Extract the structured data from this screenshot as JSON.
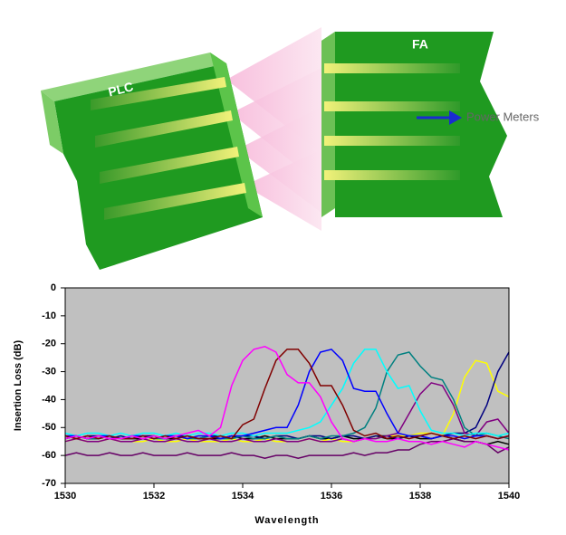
{
  "diagram": {
    "labels": {
      "left_block": "PLC",
      "right_block": "FA",
      "output": "Power Meters"
    }
  },
  "chart_data": {
    "type": "line",
    "x_label": "Wavelength",
    "y_label": "Insertion Loss (dB)",
    "xlim": [
      1530,
      1540
    ],
    "xticks": [
      1530,
      1532,
      1534,
      1536,
      1538,
      1540
    ],
    "ylim": [
      -70,
      0
    ],
    "yticks": [
      0,
      -10,
      -20,
      -30,
      -40,
      -50,
      -60,
      -70
    ],
    "grid": false,
    "background": "#c0c0c0",
    "x": [
      1530,
      1530.25,
      1530.5,
      1530.75,
      1531,
      1531.25,
      1531.5,
      1531.75,
      1532,
      1532.25,
      1532.5,
      1532.75,
      1533,
      1533.25,
      1533.5,
      1533.75,
      1534,
      1534.25,
      1534.5,
      1534.75,
      1535,
      1535.25,
      1535.5,
      1535.75,
      1536,
      1536.25,
      1536.5,
      1536.75,
      1537,
      1537.25,
      1537.5,
      1537.75,
      1538,
      1538.25,
      1538.5,
      1538.75,
      1539,
      1539.25,
      1539.5,
      1539.75,
      1540
    ],
    "series": [
      {
        "color": "#000000",
        "values": [
          -54,
          -53,
          -54,
          -54,
          -53,
          -54,
          -54,
          -54,
          -53,
          -54,
          -54,
          -53,
          -54,
          -54,
          -54,
          -53,
          -54,
          -54,
          -53,
          -54,
          -54,
          -54,
          -53,
          -54,
          -54,
          -53,
          -54,
          -54,
          -53,
          -54,
          -54,
          -53,
          -54,
          -54,
          -53,
          -54,
          -55,
          -55,
          -56,
          -55,
          -56
        ]
      },
      {
        "color": "#660066",
        "values": [
          -60,
          -59,
          -60,
          -60,
          -59,
          -60,
          -60,
          -59,
          -60,
          -60,
          -60,
          -59,
          -60,
          -60,
          -60,
          -59,
          -60,
          -60,
          -61,
          -60,
          -60,
          -61,
          -60,
          -60,
          -60,
          -60,
          -59,
          -60,
          -59,
          -59,
          -58,
          -58,
          -56,
          -55,
          -55,
          -54,
          -55,
          -55,
          -56,
          -59,
          -57
        ]
      },
      {
        "color": "#ffff00",
        "values": [
          -55,
          -54,
          -55,
          -55,
          -54,
          -55,
          -55,
          -55,
          -54,
          -55,
          -55,
          -54,
          -55,
          -55,
          -55,
          -54,
          -55,
          -55,
          -54,
          -55,
          -55,
          -55,
          -54,
          -55,
          -54,
          -55,
          -55,
          -54,
          -53,
          -53,
          -53,
          -53,
          -52,
          -52,
          -53,
          -45,
          -32,
          -26,
          -27,
          -37,
          -39
        ]
      },
      {
        "color": "#000080",
        "values": [
          -53,
          -54,
          -53,
          -53,
          -54,
          -53,
          -54,
          -53,
          -53,
          -54,
          -53,
          -53,
          -54,
          -53,
          -53,
          -54,
          -53,
          -53,
          -54,
          -53,
          -53,
          -54,
          -53,
          -53,
          -54,
          -53,
          -53,
          -54,
          -53,
          -53,
          -54,
          -53,
          -53,
          -54,
          -53,
          -52,
          -52,
          -50,
          -42,
          -30,
          -23
        ]
      },
      {
        "color": "#800080",
        "values": [
          -55,
          -54,
          -55,
          -55,
          -54,
          -55,
          -55,
          -54,
          -55,
          -55,
          -54,
          -55,
          -55,
          -54,
          -55,
          -55,
          -54,
          -55,
          -55,
          -54,
          -55,
          -55,
          -54,
          -55,
          -55,
          -54,
          -55,
          -54,
          -54,
          -53,
          -52,
          -45,
          -38,
          -34,
          -35,
          -42,
          -52,
          -53,
          -48,
          -47,
          -52
        ]
      },
      {
        "color": "#008080",
        "values": [
          -54,
          -53,
          -54,
          -54,
          -53,
          -54,
          -54,
          -53,
          -54,
          -54,
          -53,
          -54,
          -54,
          -53,
          -54,
          -54,
          -53,
          -54,
          -54,
          -53,
          -54,
          -54,
          -53,
          -54,
          -53,
          -53,
          -52,
          -50,
          -43,
          -30,
          -24,
          -23,
          -28,
          -32,
          -33,
          -40,
          -50,
          -53,
          -52,
          -53,
          -54
        ]
      },
      {
        "color": "#00ffff",
        "values": [
          -52,
          -53,
          -52,
          -52,
          -53,
          -52,
          -53,
          -52,
          -52,
          -53,
          -52,
          -53,
          -52,
          -52,
          -53,
          -52,
          -52,
          -53,
          -52,
          -52,
          -52,
          -51,
          -50,
          -48,
          -42,
          -36,
          -27,
          -22,
          -22,
          -30,
          -36,
          -35,
          -44,
          -51,
          -52,
          -52,
          -53,
          -52,
          -52,
          -53,
          -52
        ]
      },
      {
        "color": "#0000ff",
        "values": [
          -53,
          -53,
          -54,
          -53,
          -53,
          -54,
          -53,
          -53,
          -54,
          -53,
          -53,
          -54,
          -53,
          -53,
          -54,
          -53,
          -53,
          -52,
          -51,
          -50,
          -50,
          -42,
          -30,
          -23,
          -22,
          -26,
          -36,
          -37,
          -37,
          -45,
          -52,
          -53,
          -53,
          -54,
          -53,
          -53,
          -54,
          -53,
          -53,
          -54,
          -53
        ]
      },
      {
        "color": "#800000",
        "values": [
          -53,
          -54,
          -53,
          -54,
          -53,
          -54,
          -54,
          -53,
          -54,
          -53,
          -54,
          -53,
          -54,
          -54,
          -53,
          -54,
          -49,
          -47,
          -36,
          -26,
          -22,
          -22,
          -27,
          -35,
          -35,
          -42,
          -51,
          -53,
          -52,
          -54,
          -53,
          -54,
          -53,
          -52,
          -53,
          -54,
          -53,
          -54,
          -53,
          -54,
          -53
        ]
      },
      {
        "color": "#ff00ff",
        "values": [
          -54,
          -53,
          -54,
          -53,
          -54,
          -54,
          -53,
          -54,
          -53,
          -54,
          -53,
          -52,
          -51,
          -53,
          -50,
          -35,
          -26,
          -22,
          -21,
          -23,
          -31,
          -34,
          -34,
          -39,
          -48,
          -54,
          -55,
          -54,
          -55,
          -55,
          -54,
          -55,
          -55,
          -56,
          -55,
          -56,
          -57,
          -55,
          -56,
          -57,
          -58
        ]
      }
    ]
  }
}
